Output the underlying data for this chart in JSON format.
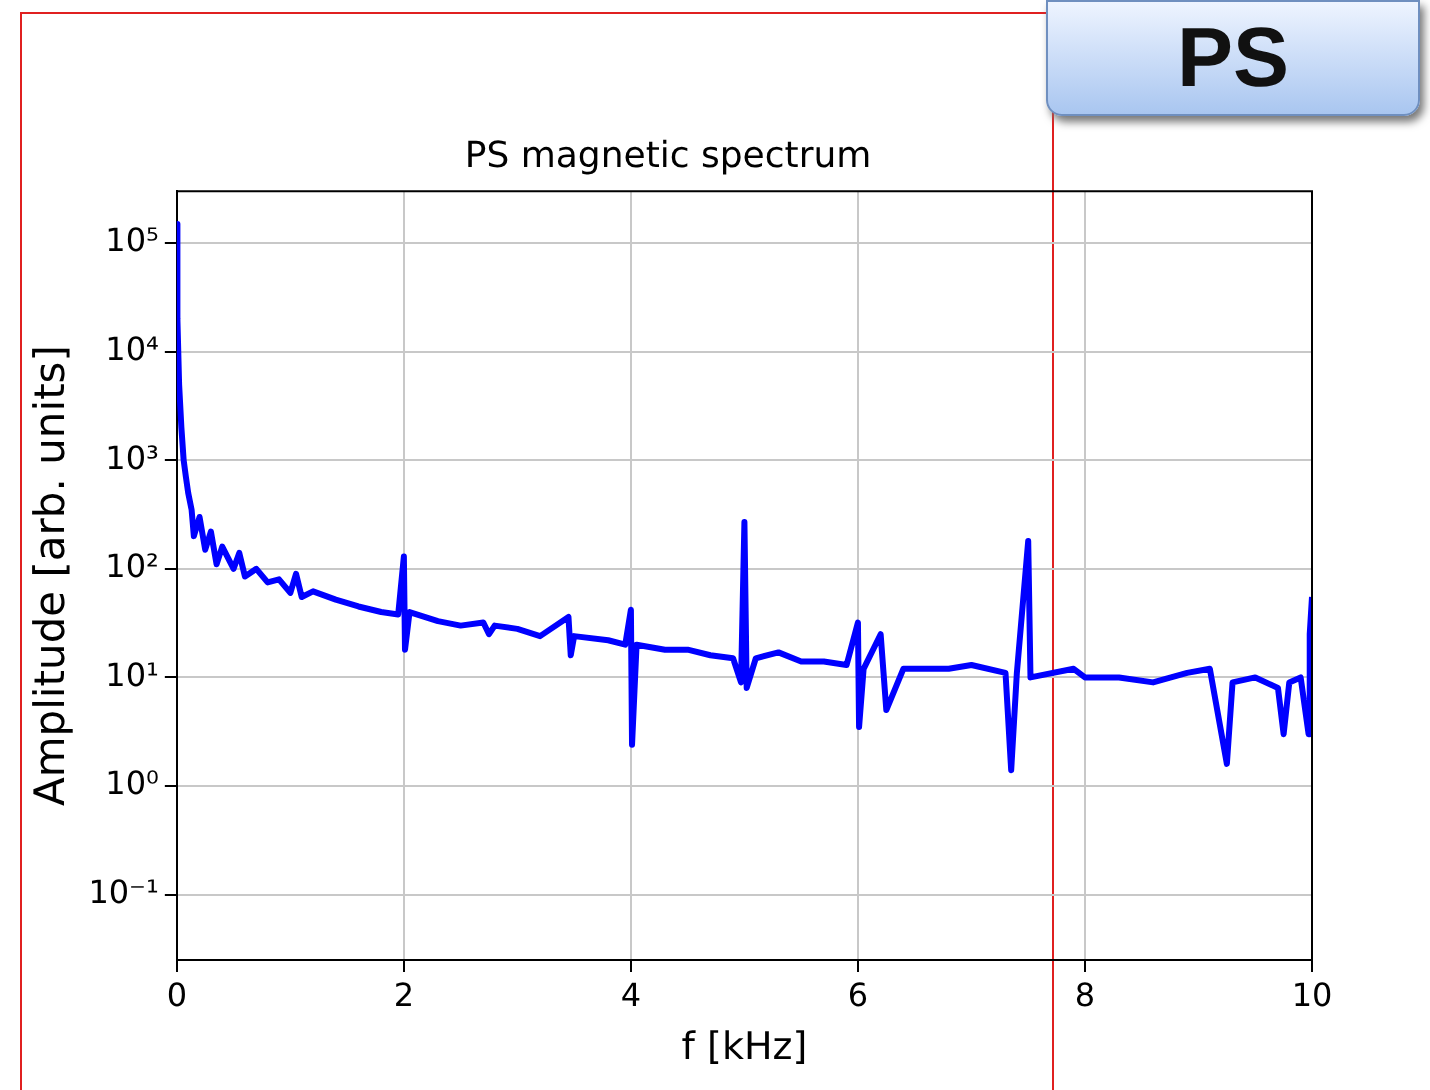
{
  "chart_data": {
    "type": "line",
    "title": "PS magnetic spectrum",
    "xlabel": "f [kHz]",
    "ylabel": "Amplitude [arb. units]",
    "annotations": [
      "PS"
    ],
    "series": [
      {
        "color": "#0000ff",
        "x": [
          0,
          0.005,
          0.02,
          0.04,
          0.06,
          0.08,
          0.1,
          0.13,
          0.15,
          0.2,
          0.25,
          0.3,
          0.35,
          0.4,
          0.5,
          0.55,
          0.6,
          0.7,
          0.8,
          0.9,
          1.0,
          1.05,
          1.1,
          1.2,
          1.4,
          1.6,
          1.8,
          1.95,
          2.0,
          2.01,
          2.05,
          2.3,
          2.5,
          2.7,
          2.75,
          2.8,
          3.0,
          3.2,
          3.45,
          3.47,
          3.5,
          3.8,
          3.95,
          4.0,
          4.01,
          4.05,
          4.3,
          4.5,
          4.7,
          4.9,
          4.97,
          5.0,
          5.02,
          5.1,
          5.3,
          5.5,
          5.7,
          5.9,
          6.0,
          6.01,
          6.05,
          6.2,
          6.25,
          6.4,
          6.8,
          7.0,
          7.3,
          7.35,
          7.4,
          7.5,
          7.52,
          7.9,
          8.0,
          8.3,
          8.6,
          8.9,
          9.1,
          9.25,
          9.3,
          9.5,
          9.7,
          9.75,
          9.8,
          9.9,
          9.97,
          9.98,
          10
        ],
        "values": [
          150000,
          20000,
          5000,
          2000,
          1000,
          700,
          500,
          350,
          200,
          300,
          150,
          220,
          110,
          160,
          100,
          140,
          85,
          100,
          75,
          80,
          60,
          90,
          55,
          62,
          52,
          45,
          40,
          38,
          130,
          18,
          40,
          33,
          30,
          32,
          25,
          30,
          28,
          24,
          36,
          16,
          24,
          22,
          20,
          42,
          2.4,
          20,
          18,
          18,
          16,
          15,
          9,
          270,
          8,
          15,
          17,
          14,
          14,
          13,
          32,
          3.5,
          12,
          25,
          5,
          12,
          12,
          13,
          11,
          1.4,
          11,
          180,
          10,
          12,
          10,
          10,
          9,
          11,
          12,
          1.6,
          9,
          10,
          8,
          3,
          9,
          10,
          3,
          25,
          55
        ]
      }
    ],
    "xlim": [
      0,
      10
    ],
    "xticks": [
      0,
      2,
      4,
      6,
      8,
      10
    ],
    "ylim": [
      0.025,
      300000
    ],
    "log": "y",
    "yticks": [
      {
        "value": 0.1,
        "label": "10⁻¹"
      },
      {
        "value": 1,
        "label": "10⁰"
      },
      {
        "value": 10,
        "label": "10¹"
      },
      {
        "value": 100,
        "label": "10²"
      },
      {
        "value": 1000,
        "label": "10³"
      },
      {
        "value": 10000,
        "label": "10⁴"
      },
      {
        "value": 100000,
        "label": "10⁵"
      }
    ],
    "grid": true,
    "marker": "none",
    "line_style": "solid"
  }
}
